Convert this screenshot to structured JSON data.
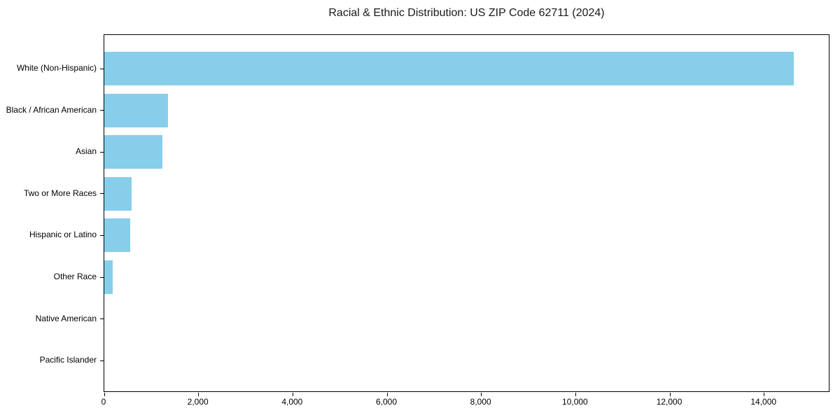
{
  "chart_data": {
    "type": "bar",
    "orientation": "horizontal",
    "title": "Racial & Ethnic Distribution: US ZIP Code 62711 (2024)",
    "categories": [
      "White (Non-Hispanic)",
      "Black / African American",
      "Asian",
      "Two or More Races",
      "Hispanic or Latino",
      "Other Race",
      "Native American",
      "Pacific Islander"
    ],
    "values": [
      14660,
      1360,
      1240,
      580,
      550,
      175,
      0,
      0
    ],
    "xlabel": "",
    "ylabel": "",
    "xlim": [
      0,
      15400
    ],
    "xticks": [
      0,
      2000,
      4000,
      6000,
      8000,
      10000,
      12000,
      14000
    ],
    "xtick_labels": [
      "0",
      "2,000",
      "4,000",
      "6,000",
      "8,000",
      "10,000",
      "12,000",
      "14,000"
    ],
    "bar_color": "#87CEEB",
    "axis_color": "#000000",
    "text_color": "#000000",
    "background_color": "#FFFFFF",
    "grid": false,
    "legend": null
  }
}
